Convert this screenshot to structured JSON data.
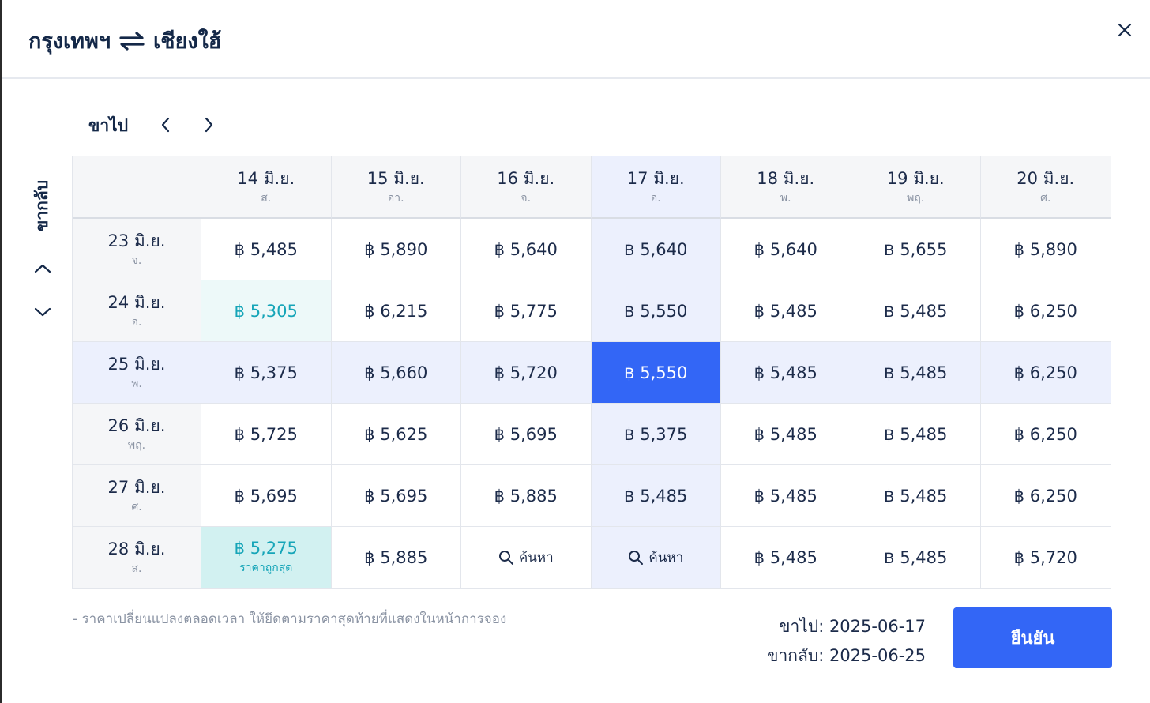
{
  "header": {
    "origin": "กรุงเทพฯ",
    "destination": "เชียงใฮ้",
    "swap_icon": "swap-arrows-icon",
    "close_icon": "close-icon"
  },
  "outbound_label": "ขาไป",
  "return_label": "ขากลับ",
  "columns": [
    {
      "date": "14 มิ.ย.",
      "day": "ส."
    },
    {
      "date": "15 มิ.ย.",
      "day": "อา."
    },
    {
      "date": "16 มิ.ย.",
      "day": "จ."
    },
    {
      "date": "17 มิ.ย.",
      "day": "อ."
    },
    {
      "date": "18 มิ.ย.",
      "day": "พ."
    },
    {
      "date": "19 มิ.ย.",
      "day": "พฤ."
    },
    {
      "date": "20 มิ.ย.",
      "day": "ศ."
    }
  ],
  "rows": [
    {
      "date": "23 มิ.ย.",
      "day": "จ.",
      "prices": [
        "฿ 5,485",
        "฿ 5,890",
        "฿ 5,640",
        "฿ 5,640",
        "฿ 5,640",
        "฿ 5,655",
        "฿ 5,890"
      ]
    },
    {
      "date": "24 มิ.ย.",
      "day": "อ.",
      "prices": [
        "฿ 5,305",
        "฿ 6,215",
        "฿ 5,775",
        "฿ 5,550",
        "฿ 5,485",
        "฿ 5,485",
        "฿ 6,250"
      ]
    },
    {
      "date": "25 มิ.ย.",
      "day": "พ.",
      "prices": [
        "฿ 5,375",
        "฿ 5,660",
        "฿ 5,720",
        "฿ 5,550",
        "฿ 5,485",
        "฿ 5,485",
        "฿ 6,250"
      ]
    },
    {
      "date": "26 มิ.ย.",
      "day": "พฤ.",
      "prices": [
        "฿ 5,725",
        "฿ 5,625",
        "฿ 5,695",
        "฿ 5,375",
        "฿ 5,485",
        "฿ 5,485",
        "฿ 6,250"
      ]
    },
    {
      "date": "27 มิ.ย.",
      "day": "ศ.",
      "prices": [
        "฿ 5,695",
        "฿ 5,695",
        "฿ 5,885",
        "฿ 5,485",
        "฿ 5,485",
        "฿ 5,485",
        "฿ 6,250"
      ]
    },
    {
      "date": "28 มิ.ย.",
      "day": "ส.",
      "prices": [
        "฿ 5,275",
        "฿ 5,885",
        "ค้นหา",
        "ค้นหา",
        "฿ 5,485",
        "฿ 5,485",
        "฿ 5,720"
      ]
    }
  ],
  "selected": {
    "row": 2,
    "col": 3
  },
  "cheap_cell": {
    "row": 1,
    "col": 0
  },
  "cheapest_cell": {
    "row": 5,
    "col": 0
  },
  "cheapest_badge": "ราคาถูกสุด",
  "search_cells": [
    {
      "row": 5,
      "col": 2
    },
    {
      "row": 5,
      "col": 3
    }
  ],
  "note": "- ราคาเปลี่ยนแปลงตลอดเวลา ให้ยึดตามราคาสุดท้ายที่แสดงในหน้าการจอง",
  "summary": {
    "outbound": "ขาไป: 2025-06-17",
    "return": "ขากลับ: 2025-06-25"
  },
  "confirm_label": "ยืนยัน",
  "colors": {
    "accent": "#3366f6",
    "highlight": "#ecf0fd",
    "cheap": "#16a5b8",
    "title": "#142848"
  }
}
